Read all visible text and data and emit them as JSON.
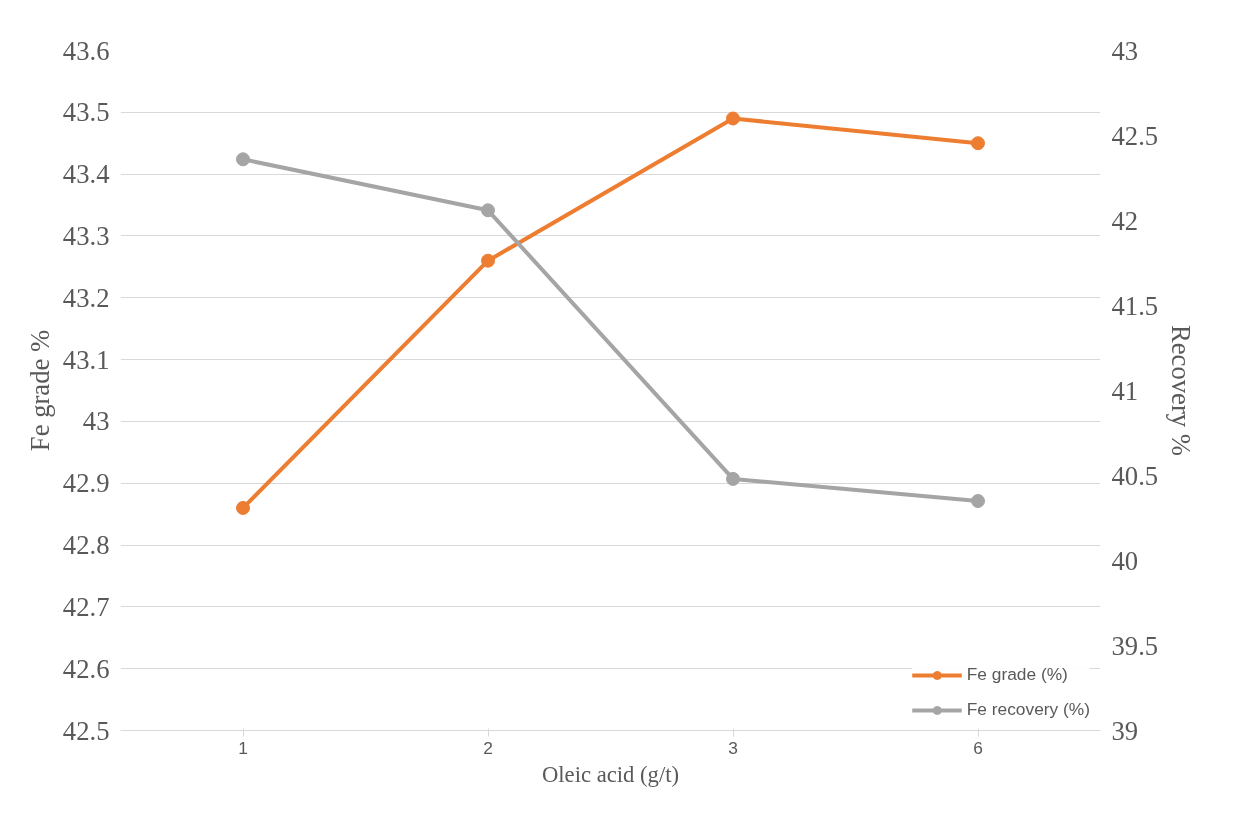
{
  "chart_data": {
    "type": "line",
    "xlabel": "Oleic acid (g/t)",
    "ylabel": "Fe grade %",
    "y2label": "Recovery %",
    "categories": [
      "1",
      "2",
      "3",
      "6"
    ],
    "series": [
      {
        "name": "Fe grade (%)",
        "color": "#ed7d31",
        "values": [
          42.86,
          43.26,
          43.49,
          43.45
        ]
      },
      {
        "name": "Fe recovery (%)",
        "color": "#a5a5a5",
        "values": [
          42.36,
          42.06,
          40.48,
          40.35
        ],
        "axis": "y2"
      }
    ],
    "ylim": [
      42.5,
      43.6
    ],
    "yticks": [
      42.5,
      42.6,
      42.7,
      42.8,
      42.9,
      43,
      43.1,
      43.2,
      43.3,
      43.4,
      43.5,
      43.6
    ],
    "y2lim": [
      39,
      43
    ],
    "y2ticks": [
      39,
      39.5,
      40,
      40.5,
      41,
      41.5,
      42,
      42.5,
      43
    ],
    "grid": "y",
    "legend": "bottom right",
    "marker": "circle",
    "line_style": "solid"
  }
}
